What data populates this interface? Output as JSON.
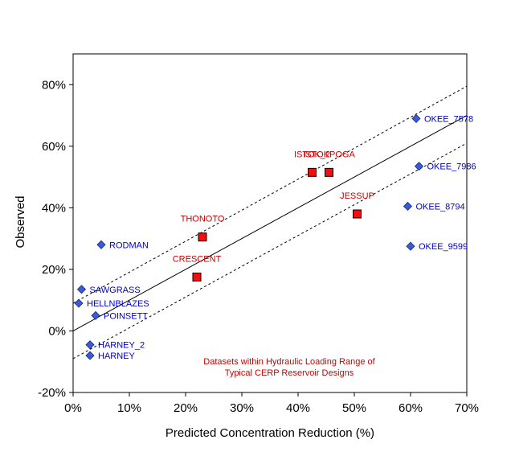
{
  "chart_data": {
    "type": "scatter",
    "xlabel": "Predicted Concentration Reduction (%)",
    "ylabel": "Observed",
    "xlim": [
      0,
      70
    ],
    "ylim": [
      -20,
      90
    ],
    "x_ticks": [
      0,
      10,
      20,
      30,
      40,
      50,
      60,
      70
    ],
    "y_ticks": [
      -20,
      0,
      20,
      40,
      60,
      80
    ],
    "x_tick_labels": [
      "0%",
      "10%",
      "20%",
      "30%",
      "40%",
      "50%",
      "60%",
      "70%"
    ],
    "y_tick_labels": [
      "-20%",
      "0%",
      "20%",
      "40%",
      "60%",
      "80%"
    ],
    "grid": false,
    "annotation": {
      "lines": [
        "Datasets within Hydraulic Loading Range of",
        "Typical CERP Reservoir Designs"
      ],
      "color": "#cc0000"
    },
    "lines": [
      {
        "style": "solid",
        "x": [
          0,
          70
        ],
        "y": [
          0,
          70
        ]
      },
      {
        "style": "dashed",
        "x": [
          0,
          70
        ],
        "y": [
          9,
          79.5
        ]
      },
      {
        "style": "dashed",
        "x": [
          0,
          70
        ],
        "y": [
          -9,
          61
        ]
      }
    ],
    "series": [
      {
        "marker": "diamond",
        "color": "#3a5ad6",
        "label_color": "#0000cc",
        "points": [
          {
            "label": "OKEE_7578",
            "x": 61,
            "y": 69
          },
          {
            "label": "OKEE_7986",
            "x": 61.5,
            "y": 53.5
          },
          {
            "label": "OKEE_8794",
            "x": 59.5,
            "y": 40.5
          },
          {
            "label": "OKEE_9599",
            "x": 60,
            "y": 27.5
          },
          {
            "label": "RODMAN",
            "x": 5,
            "y": 28
          },
          {
            "label": "SAWGRASS",
            "x": 1.5,
            "y": 13.5
          },
          {
            "label": "HELLNBLAZES",
            "x": 1,
            "y": 9
          },
          {
            "label": "POINSETT",
            "x": 4,
            "y": 5
          },
          {
            "label": "HARNEY_2",
            "x": 3,
            "y": -4.5
          },
          {
            "label": "HARNEY",
            "x": 3,
            "y": -8
          }
        ]
      },
      {
        "marker": "square",
        "color": "#ee1111",
        "label_color": "#cc0000",
        "points": [
          {
            "label": "ISTOK_2",
            "x": 42.5,
            "y": 51.5
          },
          {
            "label": "ISTOKPOGA",
            "x": 45.5,
            "y": 51.5
          },
          {
            "label": "JESSUP",
            "x": 50.5,
            "y": 38
          },
          {
            "label": "THONOTO",
            "x": 23,
            "y": 30.5
          },
          {
            "label": "CRESCENT",
            "x": 22,
            "y": 17.5
          }
        ]
      }
    ]
  }
}
